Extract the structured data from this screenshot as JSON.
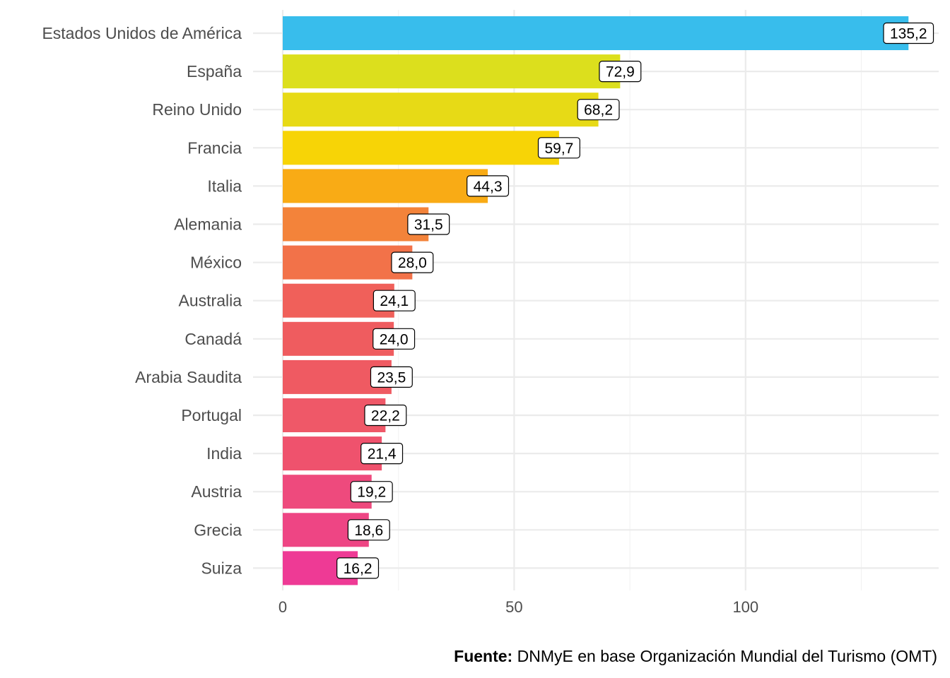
{
  "chart_data": {
    "type": "bar",
    "orientation": "horizontal",
    "categories": [
      "Estados Unidos de América",
      "España",
      "Reino Unido",
      "Francia",
      "Italia",
      "Alemania",
      "México",
      "Australia",
      "Canadá",
      "Arabia Saudita",
      "Portugal",
      "India",
      "Austria",
      "Grecia",
      "Suiza"
    ],
    "values": [
      135.2,
      72.9,
      68.2,
      59.7,
      44.3,
      31.5,
      28.0,
      24.1,
      24.0,
      23.5,
      22.2,
      21.4,
      19.2,
      18.6,
      16.2
    ],
    "value_labels": [
      "135,2",
      "72,9",
      "68,2",
      "59,7",
      "44,3",
      "31,5",
      "28,0",
      "24,1",
      "24,0",
      "23,5",
      "22,2",
      "21,4",
      "19,2",
      "18,6",
      "16,2"
    ],
    "colors": [
      "#38bdec",
      "#dcdf1d",
      "#e7da16",
      "#f7d406",
      "#f9ab15",
      "#f3833a",
      "#f27249",
      "#f0605a",
      "#ef5c5f",
      "#ef5a62",
      "#ef5868",
      "#ef526d",
      "#ee4a7d",
      "#ee4584",
      "#ee3a95"
    ],
    "xticks": [
      0,
      50,
      100
    ],
    "xtick_labels": [
      "0",
      "50",
      "100"
    ],
    "xlim": [
      0,
      141.5
    ],
    "grid": true,
    "legend": "none"
  },
  "caption": {
    "bold": "Fuente:",
    "text": " DNMyE en base Organización Mundial del Turismo (OMT)"
  }
}
